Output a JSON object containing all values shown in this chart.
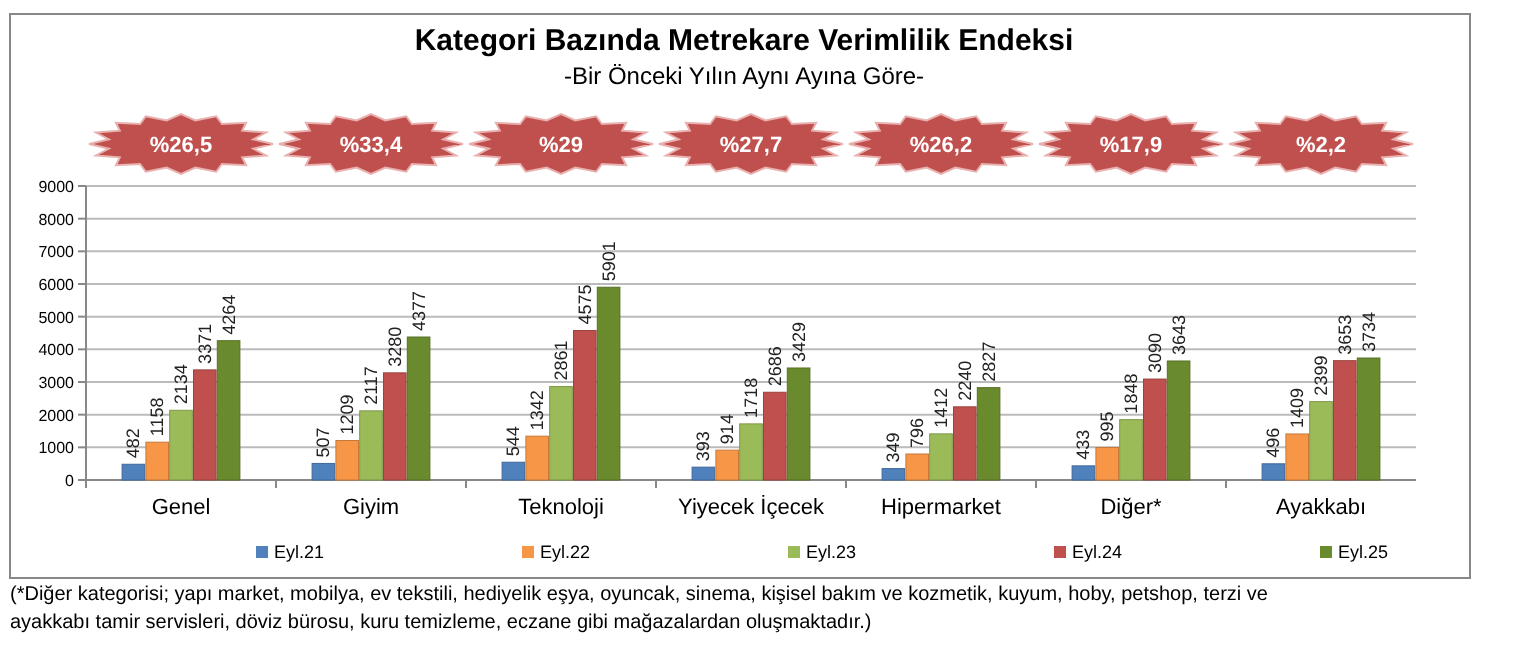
{
  "chart_data": {
    "type": "bar",
    "title": "Kategori Bazında Metrekare Verimlilik Endeksi",
    "subtitle": "-Bir Önceki Yılın Aynı Ayına Göre-",
    "categories": [
      "Genel",
      "Giyim",
      "Teknoloji",
      "Yiyecek İçecek",
      "Hipermarket",
      "Diğer*",
      "Ayakkabı"
    ],
    "series": [
      {
        "name": "Eyl.21",
        "color": "#4f81bd",
        "values": [
          482,
          507,
          544,
          393,
          349,
          433,
          496
        ]
      },
      {
        "name": "Eyl.22",
        "color": "#f79646",
        "values": [
          1158,
          1209,
          1342,
          914,
          796,
          995,
          1409
        ]
      },
      {
        "name": "Eyl.23",
        "color": "#9bbb59",
        "values": [
          2134,
          2117,
          2861,
          1718,
          1412,
          1848,
          2399
        ]
      },
      {
        "name": "Eyl.24",
        "color": "#c0504d",
        "values": [
          3371,
          3280,
          4575,
          2686,
          2240,
          3090,
          3653
        ]
      },
      {
        "name": "Eyl.25",
        "color": "#6a8a2e",
        "values": [
          4264,
          4377,
          5901,
          3429,
          2827,
          3643,
          3734
        ]
      }
    ],
    "ylim": [
      0,
      9000
    ],
    "yticks": [
      0,
      1000,
      2000,
      3000,
      4000,
      5000,
      6000,
      7000,
      8000,
      9000
    ],
    "grid": "y",
    "legend": "bottom",
    "data_labels": true,
    "annotations": [
      "%26,5",
      "%33,4",
      "%29",
      "%27,7",
      "%26,2",
      "%17,9",
      "%2,2",
      "(*Diğer kategorisi; yapı market, mobilya, ev tekstili, hediyelik eşya, oyuncak, sinema, kişisel bakım ve kozmetik, kuyum, hoby, petshop, terzi ve ayakkabı tamir servisleri, döviz bürosu, kuru temizleme, eczane gibi mağazalardan oluşmaktadır.)"
    ]
  }
}
